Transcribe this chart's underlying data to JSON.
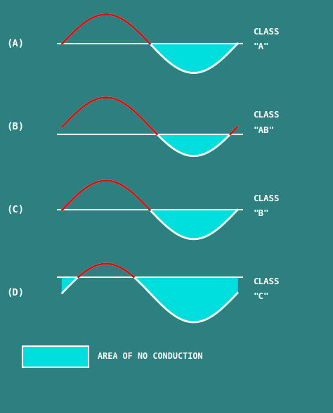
{
  "background_color": "#2e7f7f",
  "wave_color_red": "#cc1111",
  "wave_color_white": "#ffffff",
  "fill_color": "#00dddd",
  "line_color": "#ffffff",
  "text_color": "#ffffff",
  "panels": [
    {
      "label": "(A)",
      "class_line1": "CLASS",
      "class_line2": "\"A\"",
      "baseline": 0.0,
      "amp": 1.0
    },
    {
      "label": "(B)",
      "class_line1": "CLASS",
      "class_line2": "\"AB\"",
      "baseline": -0.25,
      "amp": 1.0
    },
    {
      "label": "(C)",
      "class_line1": "CLASS",
      "class_line2": "\"B\"",
      "baseline": 0.0,
      "amp": 1.0
    },
    {
      "label": "(D)",
      "class_line1": "CLASS",
      "class_line2": "\"C\"",
      "baseline": 0.55,
      "amp": 1.0
    }
  ],
  "legend_text": "AREA OF NO CONDUCTION",
  "figsize": [
    4.74,
    5.87
  ],
  "dpi": 100
}
